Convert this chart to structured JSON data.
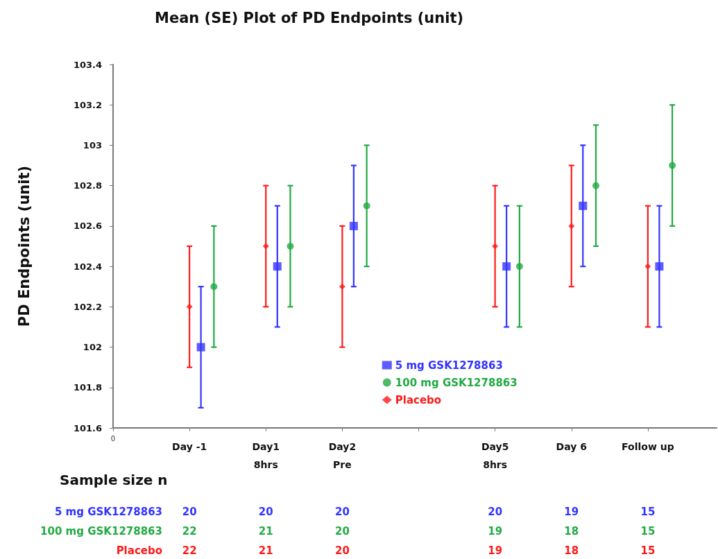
{
  "chart_data": {
    "type": "scatter",
    "title": "Mean (SE) Plot of PD Endpoints (unit)",
    "ylabel": "PD Endpoints (unit)",
    "categories": [
      "Day -1",
      "Day1\n8hrs",
      "Day2\nPre",
      null,
      "Day5\n8hrs",
      "Day 6",
      "Follow up"
    ],
    "ylim": [
      101.6,
      103.4
    ],
    "yticks": [
      101.6,
      101.8,
      102,
      102.2,
      102.4,
      102.6,
      102.8,
      103,
      103.2,
      103.4
    ],
    "grid": false,
    "legend": "bottom",
    "series": [
      {
        "name": "5 mg GSK1278863",
        "color": "#3333ff",
        "marker": "square",
        "values": [
          102.0,
          102.4,
          102.6,
          null,
          102.4,
          102.7,
          102.4
        ],
        "errors": [
          0.3,
          0.3,
          0.3,
          null,
          0.3,
          0.3,
          0.3
        ]
      },
      {
        "name": "100 mg GSK1278863",
        "color": "#22aa44",
        "marker": "circle",
        "values": [
          102.3,
          102.5,
          102.7,
          null,
          102.4,
          102.8,
          102.9
        ],
        "errors": [
          0.3,
          0.3,
          0.3,
          null,
          0.3,
          0.3,
          0.3
        ]
      },
      {
        "name": "Placebo",
        "color": "#ff1a1a",
        "marker": "diamond",
        "values": [
          102.2,
          102.5,
          102.3,
          null,
          102.5,
          102.6,
          102.4
        ],
        "errors": [
          0.3,
          0.3,
          0.3,
          null,
          0.3,
          0.3,
          0.3
        ]
      }
    ],
    "annotations": [
      "Sample size n",
      "5 mg GSK1278863",
      "20",
      "20",
      "20",
      "20",
      "19",
      "15",
      "100 mg GSK1278863",
      "22",
      "21",
      "20",
      "19",
      "18",
      "15",
      "Placebo",
      "22",
      "21",
      "20",
      "19",
      "18",
      "15",
      "0"
    ]
  }
}
